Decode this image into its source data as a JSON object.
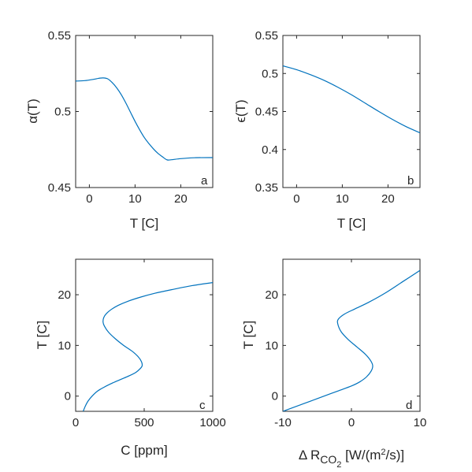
{
  "chart_data": [
    {
      "type": "line",
      "panel_letter": "a",
      "xlabel": "T [C]",
      "ylabel": "α(T)",
      "xlim": [
        -3,
        27
      ],
      "ylim": [
        0.45,
        0.55
      ],
      "xticks": [
        0,
        10,
        20
      ],
      "yticks": [
        0.45,
        0.5,
        0.55
      ],
      "xtick_labels": [
        "0",
        "10",
        "20"
      ],
      "ytick_labels": [
        "0.45",
        "0.5",
        "0.55"
      ],
      "grid": false,
      "series": [
        {
          "color": "#0072BD",
          "x": [
            -3,
            -1,
            1,
            2,
            3,
            4,
            5,
            6,
            7,
            8,
            9,
            10,
            11,
            12,
            13,
            14,
            15,
            16,
            17,
            18,
            20,
            23,
            27
          ],
          "y": [
            0.52,
            0.5203,
            0.5212,
            0.5218,
            0.5221,
            0.5215,
            0.519,
            0.5155,
            0.511,
            0.5055,
            0.4995,
            0.4935,
            0.488,
            0.483,
            0.479,
            0.4755,
            0.4725,
            0.4702,
            0.4682,
            0.4683,
            0.469,
            0.4696,
            0.4697
          ]
        }
      ]
    },
    {
      "type": "line",
      "panel_letter": "b",
      "xlabel": "T [C]",
      "ylabel": "ϵ(T)",
      "xlim": [
        -3,
        27
      ],
      "ylim": [
        0.35,
        0.55
      ],
      "xticks": [
        0,
        10,
        20
      ],
      "yticks": [
        0.35,
        0.4,
        0.45,
        0.5,
        0.55
      ],
      "xtick_labels": [
        "0",
        "10",
        "20"
      ],
      "ytick_labels": [
        "0.35",
        "0.4",
        "0.45",
        "0.5",
        "0.55"
      ],
      "grid": false,
      "series": [
        {
          "color": "#0072BD",
          "x": [
            -3,
            0,
            3,
            6,
            9,
            12,
            15,
            18,
            21,
            24,
            27
          ],
          "y": [
            0.51,
            0.505,
            0.4985,
            0.491,
            0.482,
            0.472,
            0.461,
            0.45,
            0.4395,
            0.43,
            0.422
          ]
        }
      ]
    },
    {
      "type": "line",
      "panel_letter": "c",
      "xlabel": "C [ppm]",
      "ylabel": "T [C]",
      "xlim": [
        0,
        1000
      ],
      "ylim": [
        -3,
        27
      ],
      "xticks": [
        0,
        500,
        1000
      ],
      "yticks": [
        0,
        10,
        20
      ],
      "xtick_labels": [
        "0",
        "500",
        "1000"
      ],
      "ytick_labels": [
        "0",
        "10",
        "20"
      ],
      "grid": false,
      "series": [
        {
          "color": "#0072BD",
          "x": [
            55,
            70,
            90,
            120,
            160,
            210,
            270,
            330,
            390,
            440,
            470,
            485,
            480,
            455,
            410,
            350,
            290,
            240,
            210,
            200,
            205,
            225,
            260,
            310,
            380,
            470,
            580,
            700,
            850,
            1000
          ],
          "y": [
            -3,
            -2,
            -1,
            0,
            1,
            1.8,
            2.6,
            3.3,
            4,
            4.7,
            5.4,
            6,
            6.8,
            7.8,
            8.9,
            10,
            11.3,
            12.6,
            13.8,
            14.6,
            15.5,
            16.3,
            17.1,
            17.9,
            18.7,
            19.5,
            20.3,
            21,
            21.8,
            22.4
          ]
        }
      ]
    },
    {
      "type": "line",
      "panel_letter": "d",
      "xlabel_prefix": "Δ R",
      "xlabel_subscript_main": "CO",
      "xlabel_subscript_sub": "2",
      "xlabel_units_prefix": " [W/(m",
      "xlabel_units_sup": "2",
      "xlabel_units_suffix": "/s)]",
      "ylabel": "T [C]",
      "xlim": [
        -10,
        10
      ],
      "ylim": [
        -3,
        27
      ],
      "xticks": [
        -10,
        0,
        10
      ],
      "yticks": [
        0,
        10,
        20
      ],
      "xtick_labels": [
        "-10",
        "0",
        "10"
      ],
      "ytick_labels": [
        "0",
        "10",
        "20"
      ],
      "grid": false,
      "series": [
        {
          "color": "#0072BD",
          "x": [
            -10,
            -8,
            -6,
            -4,
            -2,
            0,
            1.2,
            2.2,
            2.9,
            3.1,
            2.8,
            2,
            0.8,
            -0.5,
            -1.5,
            -2,
            -1.9,
            -1,
            0.5,
            2.5,
            5,
            7.5,
            10
          ],
          "y": [
            -3,
            -2,
            -1,
            0,
            1,
            2,
            2.8,
            3.8,
            5,
            6,
            7,
            8.3,
            9.7,
            11.2,
            12.7,
            14.3,
            15.2,
            16.2,
            17.2,
            18.5,
            20.4,
            22.6,
            24.8
          ]
        }
      ]
    }
  ]
}
